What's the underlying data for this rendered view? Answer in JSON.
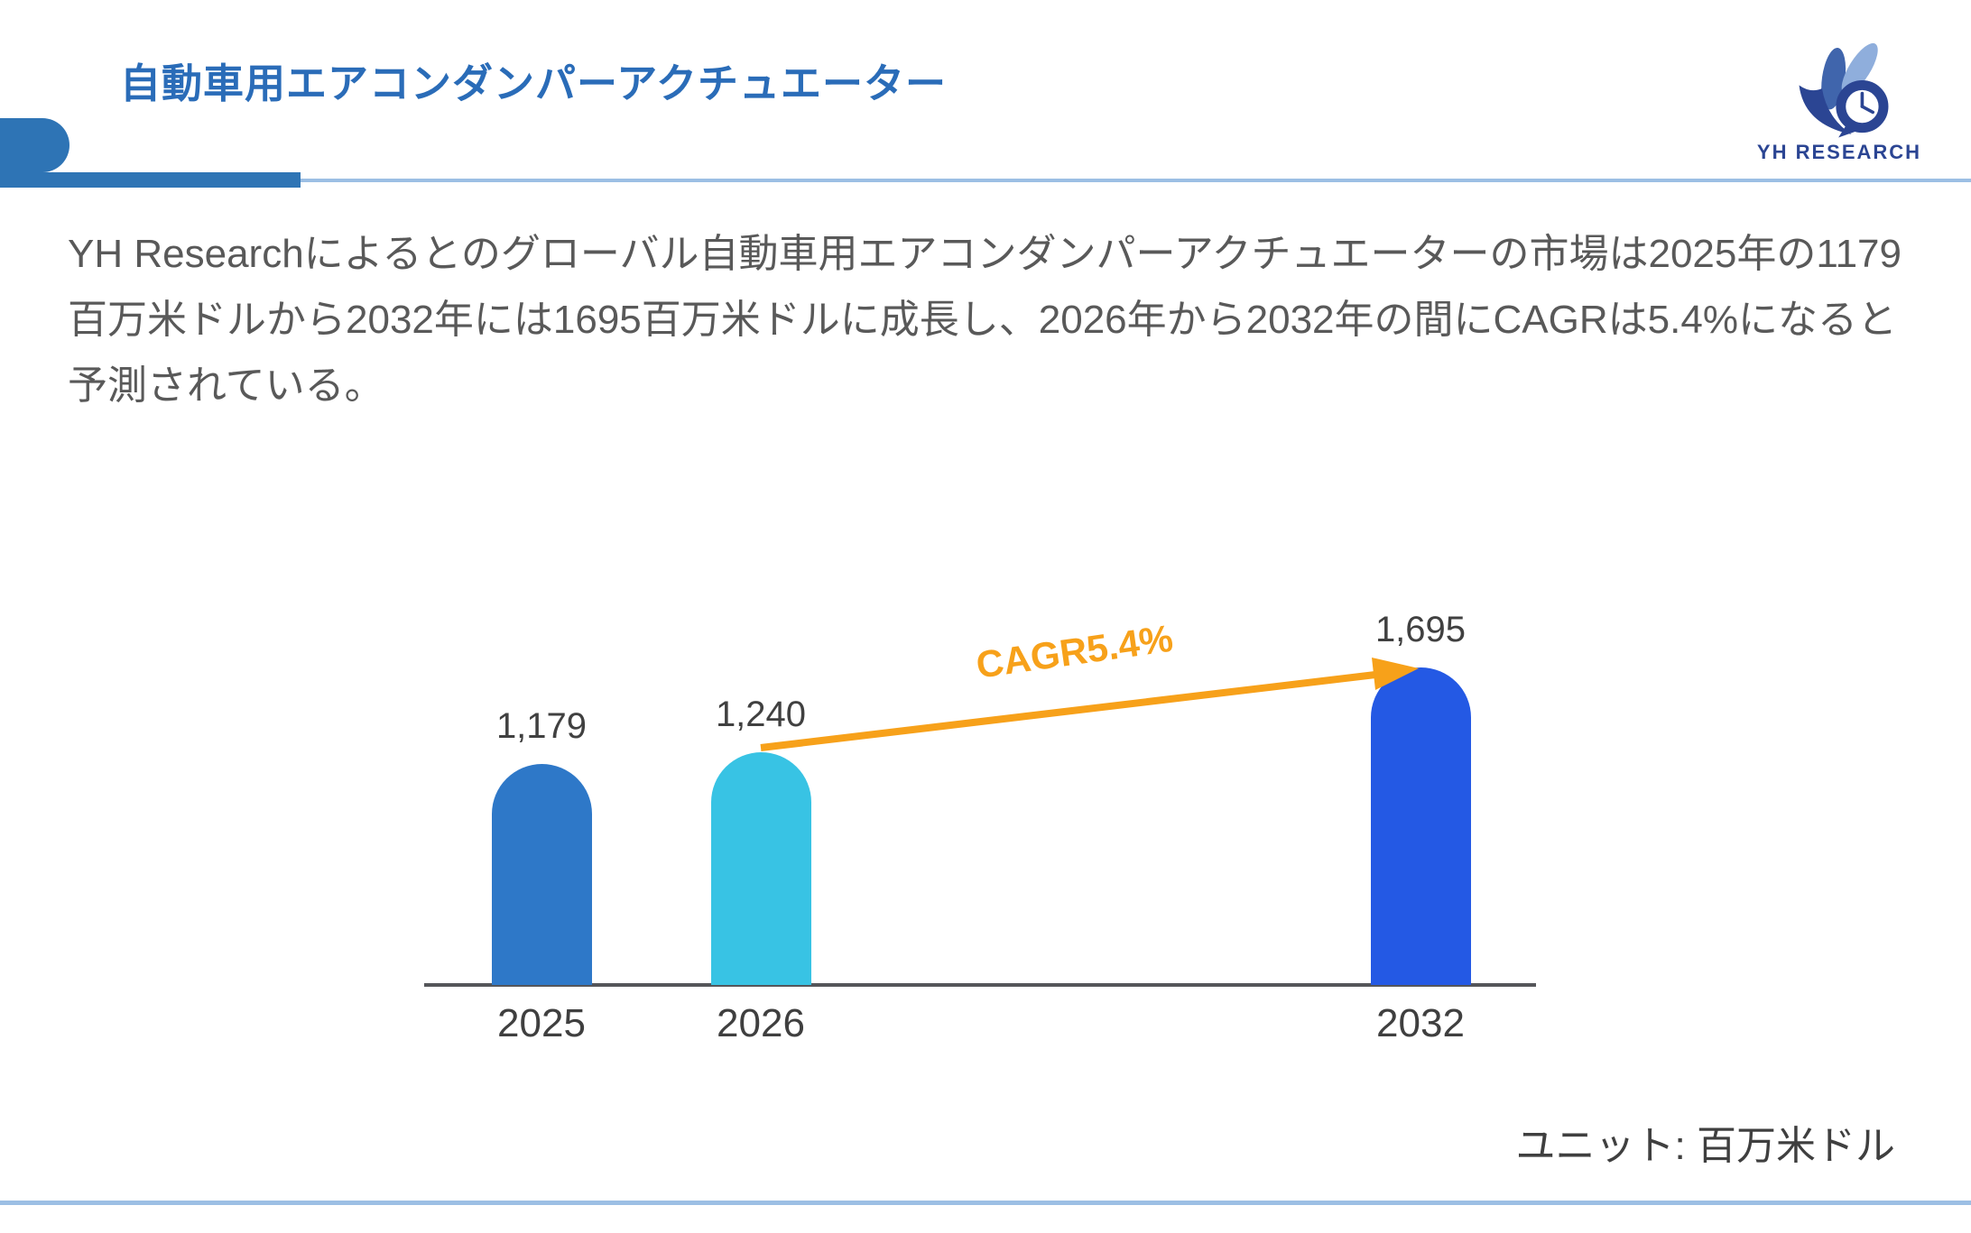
{
  "page": {
    "title": "自動車用エアコンダンパーアクチュエーター",
    "logo": {
      "brand": "YH RESEARCH"
    },
    "paragraph_lines": [
      "YH Researchによるとのグローバル自動車用エアコンダンパーアクチュエーターの市場は2025年の1179",
      "百万米ドルから2032年には1695百万米ドルに成長し、2026年から2032年の間にCAGRは5.4%になると",
      "予測されている。"
    ],
    "unit_note": "ユニット: 百万米ドル"
  },
  "chart_data": {
    "type": "bar",
    "categories": [
      "2025",
      "2026",
      "2032"
    ],
    "values": [
      1179,
      1240,
      1695
    ],
    "value_labels": [
      "1,179",
      "1,240",
      "1,695"
    ],
    "bar_colors": [
      "#2e78c8",
      "#38c3e4",
      "#2459e4"
    ],
    "annotation": {
      "label": "CAGR5.4%",
      "color": "#f7a11a",
      "from_category": "2026",
      "to_category": "2032"
    },
    "title": "",
    "xlabel": "",
    "ylabel": "",
    "unit": "百万米ドル",
    "ylim": [
      0,
      1695
    ],
    "grid": false,
    "legend": false
  },
  "colors": {
    "title_blue": "#2a6cb8",
    "decoration_blue": "#2e74b5",
    "light_rule_blue": "#9cbfe4",
    "body_gray": "#595959",
    "axis_gray": "#55565a",
    "arrow_orange": "#f7a11a",
    "logo_navy": "#2b4593",
    "logo_light_blue": "#8faedc",
    "logo_mid_blue": "#4065ac"
  }
}
